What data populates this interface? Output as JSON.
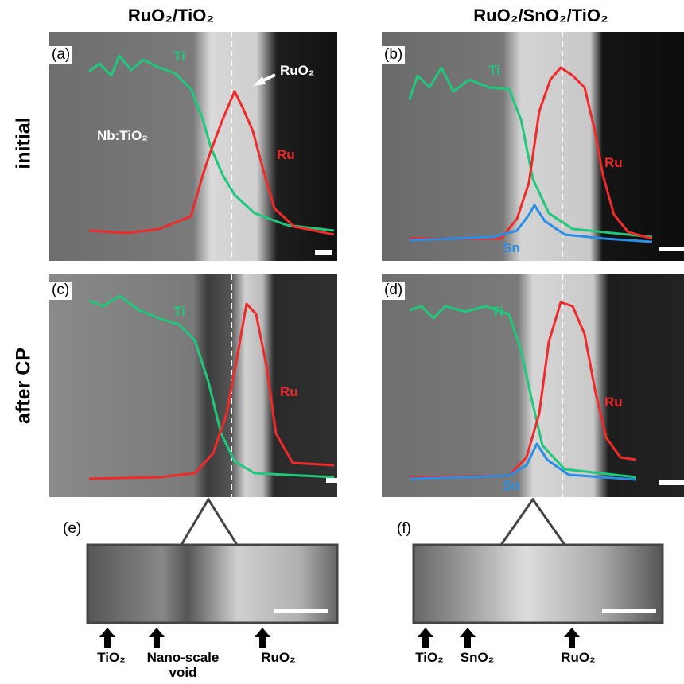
{
  "columns": [
    "RuO₂/TiO₂",
    "RuO₂/SnO₂/TiO₂"
  ],
  "rows": [
    "initial",
    "after CP"
  ],
  "panels": [
    {
      "label": "(a)",
      "annotations": [
        "Ti",
        "Ru",
        "Nb:TiO₂",
        "RuO₂"
      ]
    },
    {
      "label": "(b)",
      "annotations": [
        "Ti",
        "Ru",
        "Sn"
      ]
    },
    {
      "label": "(c)",
      "annotations": [
        "Ti",
        "Ru"
      ]
    },
    {
      "label": "(d)",
      "annotations": [
        "Ti",
        "Ru",
        "Sn"
      ]
    }
  ],
  "insets": [
    {
      "label": "(e)",
      "markers": [
        "TiO₂",
        "Nano-scale\nvoid",
        "RuO₂"
      ]
    },
    {
      "label": "(f)",
      "markers": [
        "TiO₂",
        "SnO₂",
        "RuO₂"
      ]
    }
  ]
}
